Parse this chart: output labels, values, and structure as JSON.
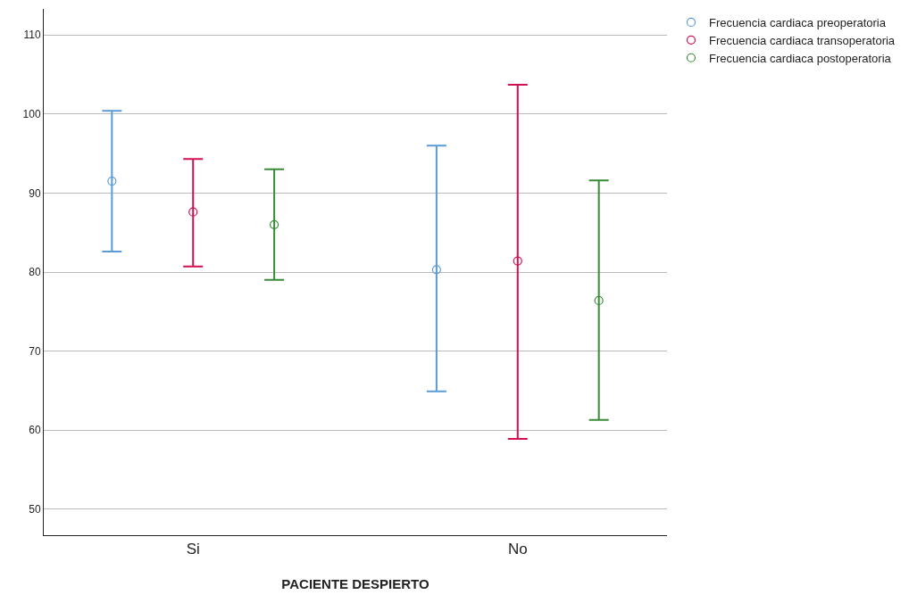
{
  "chart_data": {
    "type": "scatter",
    "xlabel": "PACIENTE DESPIERTO",
    "categories": [
      "Si",
      "No"
    ],
    "series": [
      {
        "name": "Frecuencia cardiaca preoperatoria",
        "color": "#5b9bd5",
        "values": [
          91.5,
          80.3
        ],
        "errors": [
          [
            82.6,
            100.4
          ],
          [
            64.9,
            96.0
          ]
        ]
      },
      {
        "name": "Frecuencia cardiaca transoperatoria",
        "color": "#d2104f",
        "values": [
          87.6,
          81.4
        ],
        "errors": [
          [
            80.7,
            94.3
          ],
          [
            58.9,
            103.7
          ]
        ]
      },
      {
        "name": "Frecuencia cardiaca postoperatoria",
        "color": "#3a8a3a",
        "values": [
          86.0,
          76.4
        ],
        "errors": [
          [
            79.0,
            93.0
          ],
          [
            61.3,
            91.6
          ]
        ]
      }
    ],
    "ylim": [
      46.7,
      113.3
    ],
    "yticks": [
      50,
      60,
      70,
      80,
      90,
      100,
      110
    ],
    "grid": "y",
    "legend": "top right",
    "marker": "circle"
  }
}
